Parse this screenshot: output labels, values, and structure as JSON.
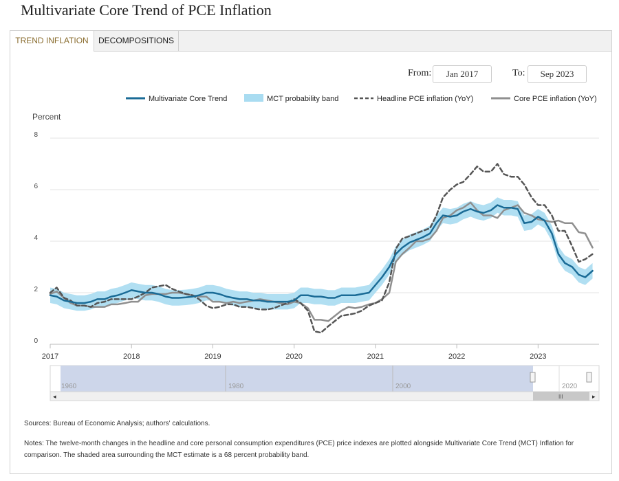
{
  "page": {
    "title": "Multivariate Core Trend of PCE Inflation"
  },
  "tabs": [
    {
      "label": "TREND INFLATION",
      "active": true
    },
    {
      "label": "DECOMPOSITIONS",
      "active": false
    }
  ],
  "range": {
    "from_label": "From:",
    "from_value": "Jan 2017",
    "to_label": "To:",
    "to_value": "Sep 2023"
  },
  "navigator": {
    "labels": [
      "1960",
      "1980",
      "2000",
      "2020"
    ],
    "scroll_left_icon": "◂",
    "scroll_right_icon": "▸",
    "grip_icon": "III"
  },
  "footer": {
    "sources": "Sources: Bureau of Economic Analysis; authors' calculations.",
    "notes": "Notes: The twelve-month changes in the headline and core personal consumption expenditures (PCE) price indexes are plotted alongside Multivariate Core Trend (MCT) Inflation for comparison. The shaded area surrounding the MCT estimate is a 68 percent probability band."
  },
  "colors": {
    "mct": "#1a6b96",
    "band": "#a9dcf1",
    "headline": "#555555",
    "core": "#8f8f8f",
    "grid": "#e3e3e3",
    "navigator_fill": "#cdd6ea"
  },
  "chart_data": {
    "type": "line",
    "title": "",
    "ylabel": "Percent",
    "xlabel": "",
    "xlim": [
      2017.0,
      2023.75
    ],
    "ylim": [
      0,
      8
    ],
    "yticks": [
      "0",
      "2",
      "4",
      "6",
      "8"
    ],
    "xticks": [
      "2017",
      "2018",
      "2019",
      "2020",
      "2021",
      "2022",
      "2023"
    ],
    "grid": "horizontal",
    "legend_position": "top",
    "legend": [
      {
        "name": "Multivariate Core Trend",
        "style": "line"
      },
      {
        "name": "MCT probability band",
        "style": "band"
      },
      {
        "name": "Headline PCE inflation (YoY)",
        "style": "dashed"
      },
      {
        "name": "Core PCE inflation (YoY)",
        "style": "line"
      }
    ],
    "series": [
      {
        "name": "Multivariate Core Trend",
        "x": [
          2017.0,
          2017.08,
          2017.17,
          2017.25,
          2017.33,
          2017.42,
          2017.5,
          2017.58,
          2017.67,
          2017.75,
          2017.83,
          2017.92,
          2018.0,
          2018.08,
          2018.17,
          2018.25,
          2018.33,
          2018.42,
          2018.5,
          2018.58,
          2018.67,
          2018.75,
          2018.83,
          2018.92,
          2019.0,
          2019.08,
          2019.17,
          2019.25,
          2019.33,
          2019.42,
          2019.5,
          2019.58,
          2019.67,
          2019.75,
          2019.83,
          2019.92,
          2020.0,
          2020.08,
          2020.17,
          2020.25,
          2020.33,
          2020.42,
          2020.5,
          2020.58,
          2020.67,
          2020.75,
          2020.83,
          2020.92,
          2021.0,
          2021.08,
          2021.17,
          2021.25,
          2021.33,
          2021.42,
          2021.5,
          2021.58,
          2021.67,
          2021.75,
          2021.83,
          2021.92,
          2022.0,
          2022.08,
          2022.17,
          2022.25,
          2022.33,
          2022.42,
          2022.5,
          2022.58,
          2022.67,
          2022.75,
          2022.83,
          2022.92,
          2023.0,
          2023.08,
          2023.17,
          2023.25,
          2023.33,
          2023.42,
          2023.5,
          2023.58,
          2023.67
        ],
        "values": [
          1.9,
          1.85,
          1.7,
          1.65,
          1.6,
          1.6,
          1.65,
          1.75,
          1.75,
          1.85,
          1.9,
          2.0,
          2.1,
          2.05,
          2.0,
          2.0,
          1.95,
          1.85,
          1.8,
          1.8,
          1.82,
          1.85,
          1.9,
          2.0,
          2.0,
          1.95,
          1.85,
          1.8,
          1.75,
          1.75,
          1.7,
          1.7,
          1.65,
          1.65,
          1.65,
          1.65,
          1.7,
          1.9,
          1.9,
          1.85,
          1.85,
          1.8,
          1.8,
          1.9,
          1.9,
          1.9,
          1.95,
          2.0,
          2.3,
          2.6,
          3.0,
          3.5,
          3.75,
          3.95,
          4.05,
          4.15,
          4.3,
          4.7,
          5.0,
          4.95,
          5.0,
          5.15,
          5.25,
          5.15,
          5.1,
          5.2,
          5.4,
          5.3,
          5.3,
          5.25,
          4.7,
          4.75,
          4.95,
          4.8,
          4.3,
          3.5,
          3.15,
          3.0,
          2.7,
          2.6,
          2.85
        ]
      },
      {
        "name": "Headline PCE inflation (YoY)",
        "x": [
          2017.0,
          2017.08,
          2017.17,
          2017.25,
          2017.33,
          2017.42,
          2017.5,
          2017.58,
          2017.67,
          2017.75,
          2017.83,
          2017.92,
          2018.0,
          2018.08,
          2018.17,
          2018.25,
          2018.33,
          2018.42,
          2018.5,
          2018.58,
          2018.67,
          2018.75,
          2018.83,
          2018.92,
          2019.0,
          2019.08,
          2019.17,
          2019.25,
          2019.33,
          2019.42,
          2019.5,
          2019.58,
          2019.67,
          2019.75,
          2019.83,
          2019.92,
          2020.0,
          2020.08,
          2020.17,
          2020.25,
          2020.33,
          2020.42,
          2020.5,
          2020.58,
          2020.67,
          2020.75,
          2020.83,
          2020.92,
          2021.0,
          2021.08,
          2021.17,
          2021.25,
          2021.33,
          2021.42,
          2021.5,
          2021.58,
          2021.67,
          2021.75,
          2021.83,
          2021.92,
          2022.0,
          2022.08,
          2022.17,
          2022.25,
          2022.33,
          2022.42,
          2022.5,
          2022.58,
          2022.67,
          2022.75,
          2022.83,
          2022.92,
          2023.0,
          2023.08,
          2023.17,
          2023.25,
          2023.33,
          2023.42,
          2023.5,
          2023.58,
          2023.67
        ],
        "values": [
          2.0,
          2.2,
          1.8,
          1.7,
          1.5,
          1.5,
          1.45,
          1.6,
          1.65,
          1.75,
          1.75,
          1.75,
          1.75,
          1.85,
          2.0,
          2.2,
          2.25,
          2.3,
          2.15,
          2.05,
          1.95,
          1.9,
          1.75,
          1.5,
          1.4,
          1.45,
          1.55,
          1.55,
          1.45,
          1.45,
          1.4,
          1.35,
          1.35,
          1.4,
          1.5,
          1.6,
          1.75,
          1.6,
          1.3,
          0.5,
          0.45,
          0.7,
          0.9,
          1.1,
          1.15,
          1.2,
          1.3,
          1.5,
          1.6,
          1.7,
          2.4,
          3.7,
          4.1,
          4.2,
          4.3,
          4.4,
          4.5,
          5.0,
          5.7,
          6.0,
          6.2,
          6.3,
          6.6,
          6.9,
          6.7,
          6.7,
          7.0,
          6.6,
          6.5,
          6.5,
          6.2,
          5.7,
          5.4,
          5.4,
          5.0,
          4.4,
          4.4,
          3.8,
          3.2,
          3.3,
          3.5
        ]
      },
      {
        "name": "Core PCE inflation (YoY)",
        "x": [
          2017.0,
          2017.08,
          2017.17,
          2017.25,
          2017.33,
          2017.42,
          2017.5,
          2017.58,
          2017.67,
          2017.75,
          2017.83,
          2017.92,
          2018.0,
          2018.08,
          2018.17,
          2018.25,
          2018.33,
          2018.42,
          2018.5,
          2018.58,
          2018.67,
          2018.75,
          2018.83,
          2018.92,
          2019.0,
          2019.08,
          2019.17,
          2019.25,
          2019.33,
          2019.42,
          2019.5,
          2019.58,
          2019.67,
          2019.75,
          2019.83,
          2019.92,
          2020.0,
          2020.08,
          2020.17,
          2020.25,
          2020.33,
          2020.42,
          2020.5,
          2020.58,
          2020.67,
          2020.75,
          2020.83,
          2020.92,
          2021.0,
          2021.08,
          2021.17,
          2021.25,
          2021.33,
          2021.42,
          2021.5,
          2021.58,
          2021.67,
          2021.75,
          2021.83,
          2021.92,
          2022.0,
          2022.08,
          2022.17,
          2022.25,
          2022.33,
          2022.42,
          2022.5,
          2022.58,
          2022.67,
          2022.75,
          2022.83,
          2022.92,
          2023.0,
          2023.08,
          2023.17,
          2023.25,
          2023.33,
          2023.42,
          2023.5,
          2023.58,
          2023.67
        ],
        "values": [
          1.95,
          2.05,
          1.8,
          1.6,
          1.5,
          1.5,
          1.45,
          1.45,
          1.45,
          1.55,
          1.55,
          1.6,
          1.65,
          1.65,
          1.9,
          1.95,
          1.95,
          1.95,
          2.0,
          2.0,
          1.95,
          1.9,
          1.85,
          1.85,
          1.65,
          1.65,
          1.6,
          1.65,
          1.6,
          1.65,
          1.7,
          1.75,
          1.7,
          1.65,
          1.6,
          1.55,
          1.65,
          1.6,
          1.4,
          0.95,
          0.95,
          0.9,
          1.1,
          1.3,
          1.45,
          1.4,
          1.45,
          1.55,
          1.6,
          1.75,
          2.0,
          3.2,
          3.5,
          3.75,
          4.0,
          4.0,
          4.1,
          4.4,
          4.9,
          5.0,
          5.2,
          5.3,
          5.5,
          5.2,
          5.0,
          5.0,
          4.9,
          5.2,
          5.3,
          5.4,
          5.1,
          5.0,
          4.85,
          4.8,
          4.75,
          4.8,
          4.7,
          4.7,
          4.35,
          4.3,
          3.75
        ]
      }
    ],
    "band": {
      "name": "MCT probability band",
      "half_width": 0.3
    }
  }
}
